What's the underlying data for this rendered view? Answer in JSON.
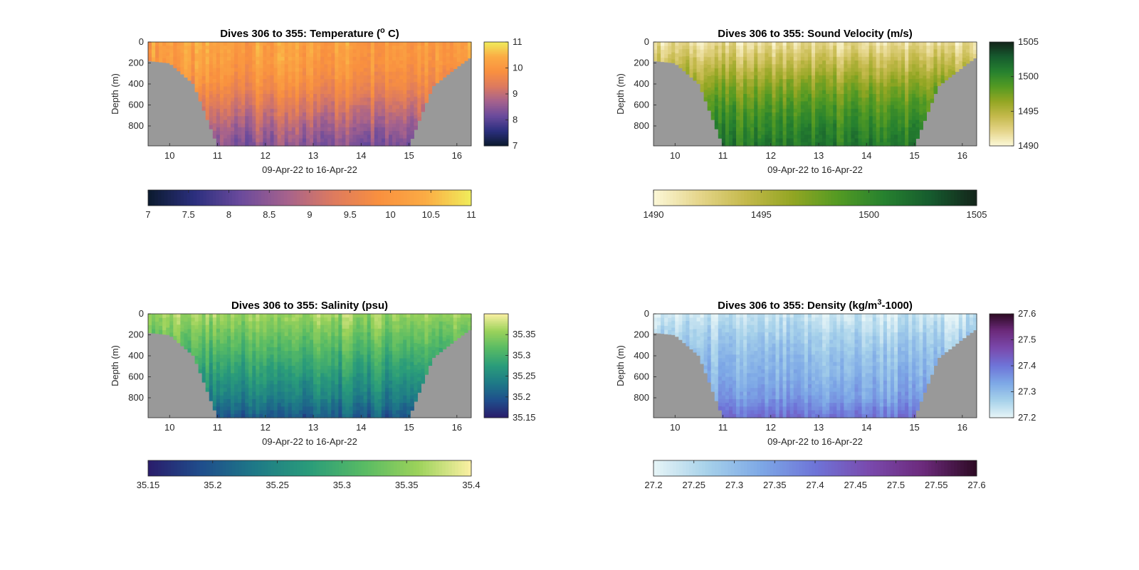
{
  "figure": {
    "panels": [
      {
        "id": "temperature",
        "title": "Dives 306 to 355: Temperature (",
        "title_sup": "o",
        "title_suffix": " C)",
        "ylabel": "Depth (m)",
        "xlabel": "09-Apr-22 to 16-Apr-22",
        "yticks": [
          "0",
          "200",
          "400",
          "600",
          "800"
        ],
        "xticks": [
          "10",
          "11",
          "12",
          "13",
          "14",
          "15",
          "16"
        ],
        "side_colorbar_ticks": [
          "11",
          "10",
          "9",
          "8",
          "7"
        ],
        "horizontal_colorbar_ticks": [
          "7",
          "7.5",
          "8",
          "8.5",
          "9",
          "9.5",
          "10",
          "10.5",
          "11"
        ]
      },
      {
        "id": "sound-velocity",
        "title": "Dives 306 to 355: Sound Velocity (m/s)",
        "title_sup": "",
        "title_suffix": "",
        "ylabel": "Depth (m)",
        "xlabel": "09-Apr-22 to 16-Apr-22",
        "yticks": [
          "0",
          "200",
          "400",
          "600",
          "800"
        ],
        "xticks": [
          "10",
          "11",
          "12",
          "13",
          "14",
          "15",
          "16"
        ],
        "side_colorbar_ticks": [
          "1505",
          "1500",
          "1495",
          "1490"
        ],
        "horizontal_colorbar_ticks": [
          "1490",
          "1495",
          "1500",
          "1505"
        ]
      },
      {
        "id": "salinity",
        "title": "Dives 306 to 355: Salinity (psu)",
        "title_sup": "",
        "title_suffix": "",
        "ylabel": "Depth (m)",
        "xlabel": "09-Apr-22 to 16-Apr-22",
        "yticks": [
          "0",
          "200",
          "400",
          "600",
          "800"
        ],
        "xticks": [
          "10",
          "11",
          "12",
          "13",
          "14",
          "15",
          "16"
        ],
        "side_colorbar_ticks": [
          "35.35",
          "35.3",
          "35.25",
          "35.2",
          "35.15"
        ],
        "horizontal_colorbar_ticks": [
          "35.15",
          "35.2",
          "35.25",
          "35.3",
          "35.35",
          "35.4"
        ]
      },
      {
        "id": "density",
        "title": "Dives 306 to 355: Density (kg/m",
        "title_sup": "3",
        "title_suffix": "-1000)",
        "ylabel": "Depth (m)",
        "xlabel": "09-Apr-22 to 16-Apr-22",
        "yticks": [
          "0",
          "200",
          "400",
          "600",
          "800"
        ],
        "xticks": [
          "10",
          "11",
          "12",
          "13",
          "14",
          "15",
          "16"
        ],
        "side_colorbar_ticks": [
          "27.6",
          "27.5",
          "27.4",
          "27.3",
          "27.2"
        ],
        "horizontal_colorbar_ticks": [
          "27.2",
          "27.25",
          "27.3",
          "27.35",
          "27.4",
          "27.45",
          "27.5",
          "27.55",
          "27.6"
        ]
      }
    ]
  },
  "chart_data": [
    {
      "type": "heatmap",
      "title": "Dives 306 to 355: Temperature (o C)",
      "xlabel": "09-Apr-22 to 16-Apr-22",
      "ylabel": "Depth (m)",
      "xlim": [
        9.55,
        16.3
      ],
      "ylim": [
        990,
        0
      ],
      "y_reversed": true,
      "clim": [
        7,
        11
      ],
      "colormap": [
        "#0b1a2e",
        "#2b2f7e",
        "#6a4a9c",
        "#a5628d",
        "#dd7a5f",
        "#f9903f",
        "#fbab44",
        "#f0ed5b"
      ],
      "no_data_color": "#999999",
      "profile_days": [
        9.6,
        10.0,
        10.5,
        11.0,
        11.5,
        12.0,
        12.5,
        13.0,
        13.5,
        14.0,
        14.5,
        15.0,
        15.5,
        16.0,
        16.3
      ],
      "max_depth_m": [
        180,
        200,
        400,
        990,
        990,
        990,
        990,
        990,
        990,
        990,
        990,
        990,
        420,
        240,
        140
      ],
      "depth_m": [
        0,
        200,
        400,
        600,
        800,
        990
      ],
      "values_at_depth": [
        10.2,
        10.1,
        9.8,
        9.3,
        8.8,
        8.4
      ],
      "xticks": [
        10,
        11,
        12,
        13,
        14,
        15,
        16
      ],
      "yticks": [
        0,
        200,
        400,
        600,
        800
      ]
    },
    {
      "type": "heatmap",
      "title": "Dives 306 to 355: Sound Velocity (m/s)",
      "xlabel": "09-Apr-22 to 16-Apr-22",
      "ylabel": "Depth (m)",
      "xlim": [
        9.55,
        16.3
      ],
      "ylim": [
        990,
        0
      ],
      "y_reversed": true,
      "clim": [
        1490,
        1505
      ],
      "colormap": [
        "#fcf8d8",
        "#e5d58a",
        "#c4b94b",
        "#93a623",
        "#539a23",
        "#26812f",
        "#165b2e",
        "#13241a"
      ],
      "no_data_color": "#999999",
      "profile_days": [
        9.6,
        10.0,
        10.5,
        11.0,
        11.5,
        12.0,
        12.5,
        13.0,
        13.5,
        14.0,
        14.5,
        15.0,
        15.5,
        16.0,
        16.3
      ],
      "max_depth_m": [
        180,
        200,
        400,
        990,
        990,
        990,
        990,
        990,
        990,
        990,
        990,
        990,
        420,
        240,
        140
      ],
      "depth_m": [
        0,
        200,
        400,
        600,
        800,
        990
      ],
      "values_at_depth": [
        1491.5,
        1494.0,
        1496.5,
        1498.5,
        1500.0,
        1501.0
      ],
      "xticks": [
        10,
        11,
        12,
        13,
        14,
        15,
        16
      ],
      "yticks": [
        0,
        200,
        400,
        600,
        800
      ]
    },
    {
      "type": "heatmap",
      "title": "Dives 306 to 355: Salinity (psu)",
      "xlabel": "09-Apr-22 to 16-Apr-22",
      "ylabel": "Depth (m)",
      "xlim": [
        9.55,
        16.3
      ],
      "ylim": [
        990,
        0
      ],
      "y_reversed": true,
      "clim": [
        35.15,
        35.4
      ],
      "colormap": [
        "#2a1d6b",
        "#1f4e8c",
        "#1e7a87",
        "#2a9c7a",
        "#58bb64",
        "#9bd25a",
        "#fcf0a4"
      ],
      "no_data_color": "#999999",
      "profile_days": [
        9.6,
        10.0,
        10.5,
        11.0,
        11.5,
        12.0,
        12.5,
        13.0,
        13.5,
        14.0,
        14.5,
        15.0,
        15.5,
        16.0,
        16.3
      ],
      "max_depth_m": [
        180,
        200,
        400,
        990,
        990,
        990,
        990,
        990,
        990,
        990,
        990,
        990,
        420,
        240,
        140
      ],
      "depth_m": [
        0,
        200,
        400,
        600,
        800,
        990
      ],
      "values_at_depth": [
        35.36,
        35.33,
        35.3,
        35.27,
        35.24,
        35.2
      ],
      "xticks": [
        10,
        11,
        12,
        13,
        14,
        15,
        16
      ],
      "yticks": [
        0,
        200,
        400,
        600,
        800
      ]
    },
    {
      "type": "heatmap",
      "title": "Dives 306 to 355: Density (kg/m3-1000)",
      "xlabel": "09-Apr-22 to 16-Apr-22",
      "ylabel": "Depth (m)",
      "xlim": [
        9.55,
        16.3
      ],
      "ylim": [
        990,
        0
      ],
      "y_reversed": true,
      "clim": [
        27.2,
        27.6
      ],
      "colormap": [
        "#e7f5f7",
        "#a6d1ea",
        "#7da8e6",
        "#6e74d8",
        "#7a4aad",
        "#6c2a7c",
        "#2d0a23"
      ],
      "no_data_color": "#999999",
      "profile_days": [
        9.6,
        10.0,
        10.5,
        11.0,
        11.5,
        12.0,
        12.5,
        13.0,
        13.5,
        14.0,
        14.5,
        15.0,
        15.5,
        16.0,
        16.3
      ],
      "max_depth_m": [
        180,
        200,
        400,
        990,
        990,
        990,
        990,
        990,
        990,
        990,
        990,
        990,
        420,
        240,
        140
      ],
      "depth_m": [
        0,
        200,
        400,
        600,
        800,
        990
      ],
      "values_at_depth": [
        27.22,
        27.26,
        27.29,
        27.31,
        27.34,
        27.4
      ],
      "xticks": [
        10,
        11,
        12,
        13,
        14,
        15,
        16
      ],
      "yticks": [
        0,
        200,
        400,
        600,
        800
      ]
    }
  ]
}
